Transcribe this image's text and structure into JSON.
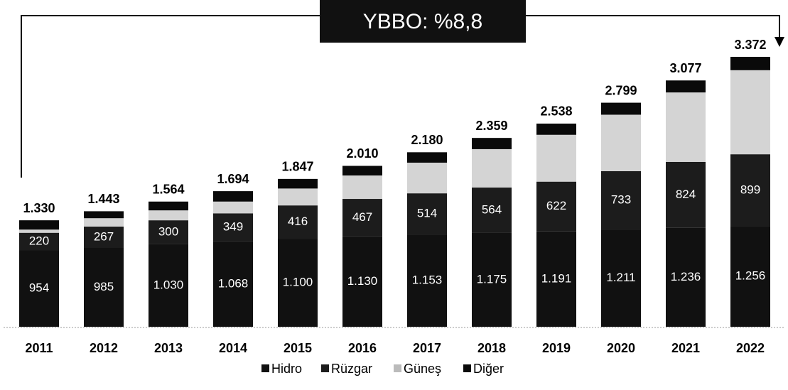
{
  "chart_data": {
    "type": "stacked_bar",
    "annotation": "YBBO: %8,8",
    "categories": [
      "2011",
      "2012",
      "2013",
      "2014",
      "2015",
      "2016",
      "2017",
      "2018",
      "2019",
      "2020",
      "2021",
      "2022"
    ],
    "series": [
      {
        "name": "Hidro",
        "color": "#111111",
        "values": [
          954,
          985,
          1030,
          1068,
          1100,
          1130,
          1153,
          1175,
          1191,
          1211,
          1236,
          1256
        ],
        "value_labels": [
          "954",
          "985",
          "1.030",
          "1.068",
          "1.100",
          "1.130",
          "1.153",
          "1.175",
          "1.191",
          "1.211",
          "1.236",
          "1.256"
        ]
      },
      {
        "name": "Rüzgar",
        "color": "#1c1c1c",
        "values": [
          220,
          267,
          300,
          349,
          416,
          467,
          514,
          564,
          622,
          733,
          824,
          899
        ]
      },
      {
        "name": "Güneş",
        "color": "#d4d4d4",
        "values": [
          40,
          104,
          124,
          147,
          211,
          293,
          383,
          480,
          585,
          705,
          867,
          1050
        ]
      },
      {
        "name": "Diğer",
        "color": "#0a0a0a",
        "values": [
          116,
          87,
          110,
          130,
          120,
          120,
          130,
          140,
          140,
          150,
          150,
          167
        ]
      }
    ],
    "totals": {
      "values": [
        1330,
        1443,
        1564,
        1694,
        1847,
        2010,
        2180,
        2359,
        2538,
        2799,
        3077,
        3372
      ],
      "value_labels": [
        "1.330",
        "1.443",
        "1.564",
        "1.694",
        "1.847",
        "2.010",
        "2.180",
        "2.359",
        "2.538",
        "2.799",
        "3.077",
        "3.372"
      ]
    }
  }
}
